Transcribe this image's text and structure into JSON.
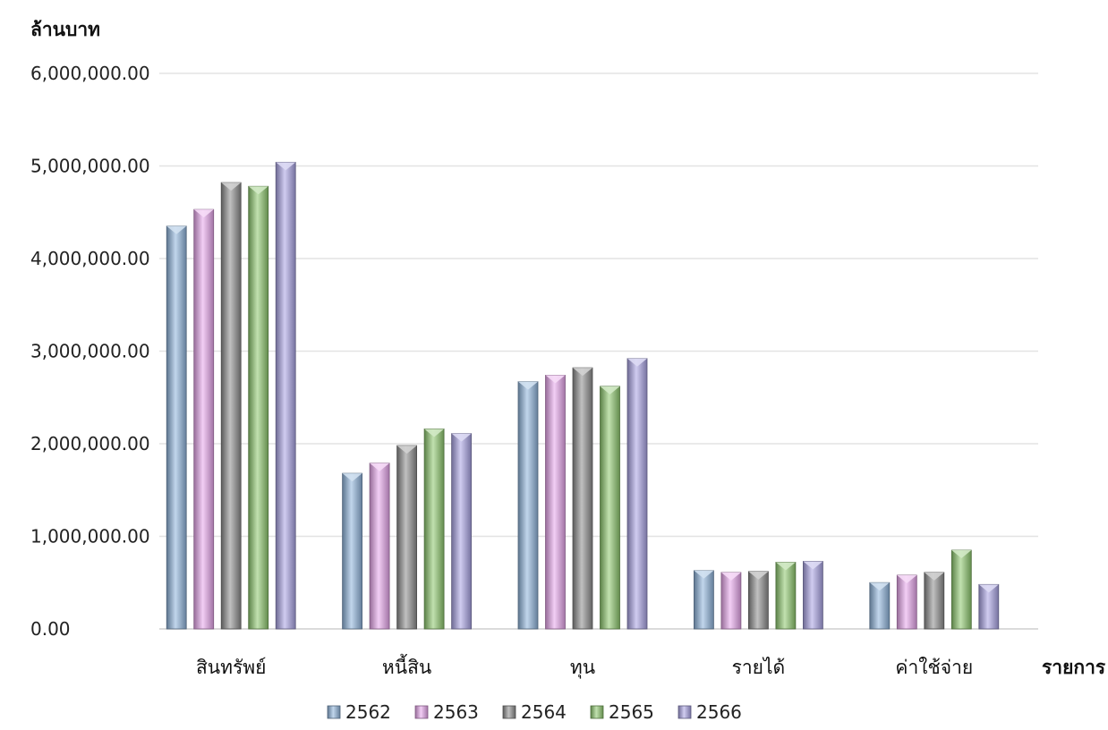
{
  "chart_data": {
    "type": "bar",
    "ylabel": "ล้านบาท",
    "xlabel": "รายการ",
    "ylim": [
      0,
      6000000
    ],
    "ytick_values": [
      0,
      1000000,
      2000000,
      3000000,
      4000000,
      5000000,
      6000000
    ],
    "ytick_labels": [
      "0.00",
      "1,000,000.00",
      "2,000,000.00",
      "3,000,000.00",
      "4,000,000.00",
      "5,000,000.00",
      "6,000,000.00"
    ],
    "categories": [
      "สินทรัพย์",
      "หนี้สิน",
      "ทุน",
      "รายได้",
      "ค่าใช้จ่าย"
    ],
    "series": [
      {
        "name": "2562",
        "color": "#8fb4dc",
        "values": [
          4350000,
          1680000,
          2670000,
          630000,
          500000
        ]
      },
      {
        "name": "2563",
        "color": "#e8a6ec",
        "values": [
          4530000,
          1790000,
          2740000,
          610000,
          580000
        ]
      },
      {
        "name": "2564",
        "color": "#8c8c8c",
        "values": [
          4820000,
          1980000,
          2820000,
          620000,
          610000
        ]
      },
      {
        "name": "2565",
        "color": "#8ec86e",
        "values": [
          4780000,
          2160000,
          2620000,
          720000,
          850000
        ]
      },
      {
        "name": "2566",
        "color": "#a9a3e4",
        "values": [
          5040000,
          2110000,
          2920000,
          730000,
          480000
        ]
      }
    ],
    "grid": true,
    "legend": "bottom"
  }
}
